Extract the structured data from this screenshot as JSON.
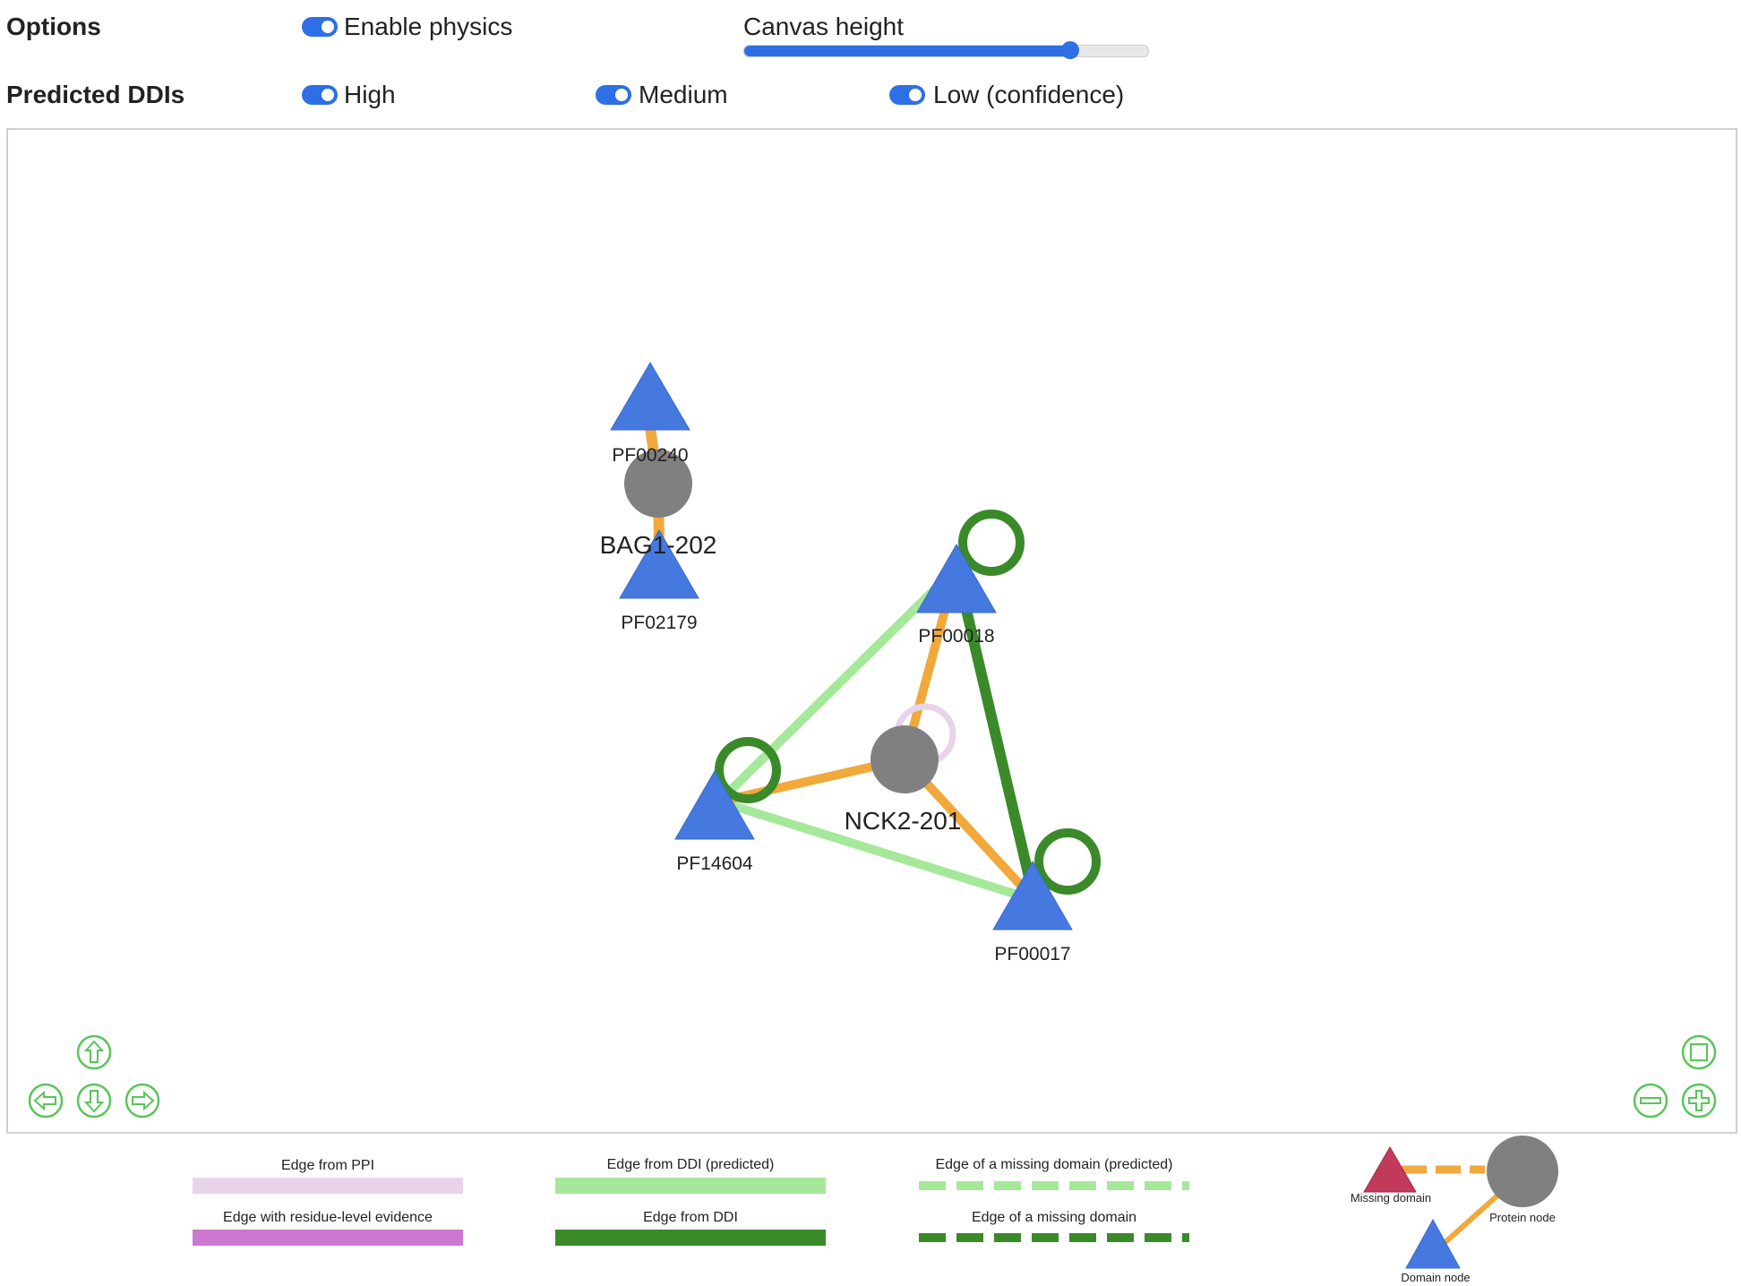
{
  "options": {
    "label": "Options",
    "enable_physics": {
      "label": "Enable physics",
      "on": true
    },
    "canvas_height": {
      "label": "Canvas height",
      "value_pct": 81
    }
  },
  "predicted_ddis": {
    "label": "Predicted DDIs",
    "high": {
      "label": "High",
      "on": true
    },
    "medium": {
      "label": "Medium",
      "on": true
    },
    "low": {
      "label": "Low (confidence)",
      "on": true
    }
  },
  "graph": {
    "nodes": {
      "bag1": "BAG1-202",
      "pf00240": "PF00240",
      "pf02179": "PF02179",
      "pf00018": "PF00018",
      "nck2": "NCK2-201",
      "pf14604": "PF14604",
      "pf00017": "PF00017"
    },
    "colors": {
      "protein": "#808080",
      "domain": "#4579e0",
      "ppi_to_domain": "#f0a93a",
      "ddi_predicted": "#a6e89a",
      "ddi": "#3a8a2a",
      "ppi": "#e8d4ea",
      "residue": "#cc77d0",
      "missing": "#c23a5a"
    }
  },
  "legend": {
    "ppi": "Edge from PPI",
    "residue": "Edge with residue-level evidence",
    "ddi_predicted": "Edge from DDI (predicted)",
    "ddi": "Edge from DDI",
    "missing_predicted": "Edge of a missing domain (predicted)",
    "missing": "Edge of a missing domain",
    "missing_domain": "Missing domain",
    "protein_node": "Protein node",
    "domain_node": "Domain node"
  }
}
